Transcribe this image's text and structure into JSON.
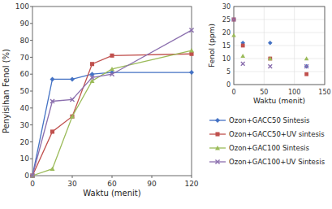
{
  "chart_data": [
    {
      "type": "line",
      "xlabel": "Waktu (menit)",
      "ylabel": "Penyisihan Fenol (%)",
      "x": [
        0,
        15,
        30,
        45,
        60,
        120
      ],
      "series": [
        {
          "name": "Ozon+GACC50 Sintesis",
          "color": "#4472C4",
          "marker": "diamond",
          "values": [
            0,
            57,
            57,
            60,
            61,
            61
          ]
        },
        {
          "name": "Ozon+GACC50+UV sintesis",
          "color": "#C0504D",
          "marker": "square",
          "values": [
            0,
            26,
            35,
            66,
            71,
            72
          ]
        },
        {
          "name": "Ozon+GAC100 Sintesis",
          "color": "#9BBB59",
          "marker": "triangle",
          "values": [
            0,
            4,
            35,
            56,
            63,
            74
          ]
        },
        {
          "name": "Ozon+GAC100+UV Sintesis",
          "color": "#8B6FAE",
          "marker": "x",
          "values": [
            0,
            44,
            45,
            58,
            60,
            86
          ]
        }
      ],
      "xlim": [
        0,
        120
      ],
      "ylim": [
        0,
        100
      ],
      "xticks": [
        0,
        30,
        60,
        90,
        120
      ],
      "yticks": [
        0,
        10,
        20,
        30,
        40,
        50,
        60,
        70,
        80,
        90,
        100
      ],
      "grid": false,
      "legend": "right"
    },
    {
      "type": "scatter",
      "xlabel": "Waktu (menit)",
      "ylabel": "Fenol (ppm)",
      "x": [
        0,
        15,
        60,
        120
      ],
      "series": [
        {
          "color": "#4472C4",
          "marker": "diamond",
          "values": [
            25,
            16,
            16,
            7
          ]
        },
        {
          "color": "#C0504D",
          "marker": "square",
          "values": [
            25,
            15,
            10,
            4
          ]
        },
        {
          "color": "#9BBB59",
          "marker": "triangle",
          "values": [
            19,
            11,
            10,
            10
          ]
        },
        {
          "color": "#8B6FAE",
          "marker": "x",
          "values": [
            25,
            8,
            7,
            7
          ]
        }
      ],
      "xlim": [
        0,
        150
      ],
      "ylim": [
        0,
        30
      ],
      "xticks": [
        0,
        50,
        100,
        150
      ],
      "yticks": [
        0,
        5,
        10,
        15,
        20,
        25,
        30
      ],
      "grid": true
    }
  ]
}
